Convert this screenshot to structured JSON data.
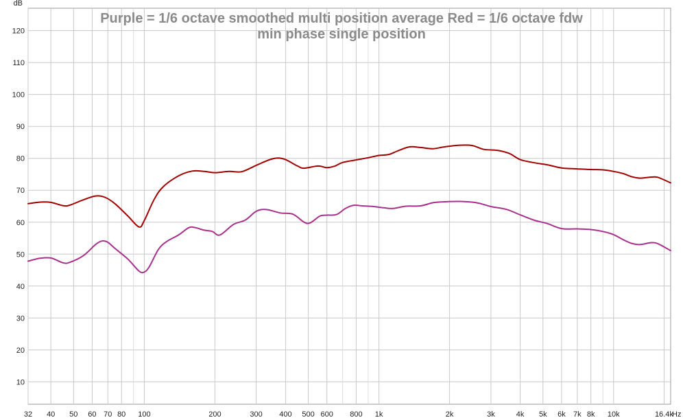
{
  "chart_data": {
    "type": "line",
    "title_line1": "Purple = 1/6 octave smoothed multi position average  Red =  1/6 octave fdw",
    "title_line2": "min phase single position",
    "ylabel": "dB",
    "xunit": "Hz",
    "xscale": "log",
    "xlim": [
      32,
      17500
    ],
    "ylim": [
      3,
      127
    ],
    "grid": true,
    "yticks": [
      10,
      20,
      30,
      40,
      50,
      60,
      70,
      80,
      90,
      100,
      110,
      120
    ],
    "xticks": [
      {
        "v": 32,
        "label": "32"
      },
      {
        "v": 40,
        "label": "40"
      },
      {
        "v": 50,
        "label": "50"
      },
      {
        "v": 60,
        "label": "60"
      },
      {
        "v": 70,
        "label": "70"
      },
      {
        "v": 80,
        "label": "80"
      },
      {
        "v": 100,
        "label": "100"
      },
      {
        "v": 200,
        "label": "200"
      },
      {
        "v": 300,
        "label": "300"
      },
      {
        "v": 400,
        "label": "400"
      },
      {
        "v": 500,
        "label": "500"
      },
      {
        "v": 600,
        "label": "600"
      },
      {
        "v": 800,
        "label": "800"
      },
      {
        "v": 1000,
        "label": "1k"
      },
      {
        "v": 2000,
        "label": "2k"
      },
      {
        "v": 3000,
        "label": "3k"
      },
      {
        "v": 4000,
        "label": "4k"
      },
      {
        "v": 5000,
        "label": "5k"
      },
      {
        "v": 6000,
        "label": "6k"
      },
      {
        "v": 7000,
        "label": "7k"
      },
      {
        "v": 8000,
        "label": "8k"
      },
      {
        "v": 10000,
        "label": "10k"
      },
      {
        "v": 16400,
        "label": "16.4k"
      }
    ],
    "minor_x": [
      90,
      700,
      900,
      9000
    ],
    "series": [
      {
        "color": "#a00000",
        "points": [
          [
            32,
            65.8
          ],
          [
            36,
            66.3
          ],
          [
            40,
            66.2
          ],
          [
            45,
            65.2
          ],
          [
            48,
            65.3
          ],
          [
            55,
            67.0
          ],
          [
            62,
            68.2
          ],
          [
            68,
            67.8
          ],
          [
            75,
            65.8
          ],
          [
            85,
            62.0
          ],
          [
            95,
            58.5
          ],
          [
            100,
            60.5
          ],
          [
            110,
            67.0
          ],
          [
            120,
            71.0
          ],
          [
            140,
            74.5
          ],
          [
            160,
            76.0
          ],
          [
            180,
            75.9
          ],
          [
            200,
            75.5
          ],
          [
            230,
            75.9
          ],
          [
            260,
            75.8
          ],
          [
            300,
            77.8
          ],
          [
            340,
            79.5
          ],
          [
            370,
            80.1
          ],
          [
            400,
            79.6
          ],
          [
            450,
            77.6
          ],
          [
            480,
            76.9
          ],
          [
            550,
            77.6
          ],
          [
            600,
            77.1
          ],
          [
            650,
            77.6
          ],
          [
            700,
            78.7
          ],
          [
            800,
            79.5
          ],
          [
            900,
            80.2
          ],
          [
            1000,
            80.9
          ],
          [
            1100,
            81.2
          ],
          [
            1200,
            82.3
          ],
          [
            1350,
            83.6
          ],
          [
            1500,
            83.4
          ],
          [
            1700,
            83.0
          ],
          [
            1900,
            83.6
          ],
          [
            2200,
            84.1
          ],
          [
            2500,
            84.0
          ],
          [
            2800,
            82.8
          ],
          [
            3200,
            82.5
          ],
          [
            3600,
            81.5
          ],
          [
            4000,
            79.6
          ],
          [
            4600,
            78.6
          ],
          [
            5200,
            78.0
          ],
          [
            6000,
            77.0
          ],
          [
            7000,
            76.7
          ],
          [
            8000,
            76.5
          ],
          [
            9000,
            76.4
          ],
          [
            10000,
            75.9
          ],
          [
            11000,
            75.2
          ],
          [
            12000,
            74.2
          ],
          [
            13000,
            73.8
          ],
          [
            15000,
            74.2
          ],
          [
            16000,
            73.6
          ],
          [
            17500,
            72.3
          ]
        ]
      },
      {
        "color": "#a8308c",
        "points": [
          [
            32,
            47.8
          ],
          [
            36,
            48.7
          ],
          [
            40,
            48.8
          ],
          [
            45,
            47.3
          ],
          [
            48,
            47.4
          ],
          [
            55,
            49.5
          ],
          [
            62,
            53.0
          ],
          [
            66,
            54.1
          ],
          [
            70,
            53.7
          ],
          [
            75,
            51.8
          ],
          [
            85,
            48.5
          ],
          [
            95,
            44.7
          ],
          [
            100,
            44.4
          ],
          [
            105,
            46.0
          ],
          [
            115,
            51.5
          ],
          [
            125,
            54.0
          ],
          [
            140,
            56.0
          ],
          [
            155,
            58.3
          ],
          [
            165,
            58.3
          ],
          [
            180,
            57.5
          ],
          [
            195,
            57.1
          ],
          [
            210,
            56.0
          ],
          [
            240,
            59.3
          ],
          [
            270,
            60.7
          ],
          [
            300,
            63.4
          ],
          [
            330,
            64.0
          ],
          [
            380,
            62.9
          ],
          [
            430,
            62.5
          ],
          [
            480,
            60.0
          ],
          [
            510,
            59.8
          ],
          [
            560,
            61.9
          ],
          [
            600,
            62.2
          ],
          [
            660,
            62.4
          ],
          [
            720,
            64.3
          ],
          [
            780,
            65.3
          ],
          [
            850,
            65.1
          ],
          [
            950,
            64.9
          ],
          [
            1050,
            64.5
          ],
          [
            1150,
            64.3
          ],
          [
            1300,
            65.0
          ],
          [
            1500,
            65.1
          ],
          [
            1700,
            66.1
          ],
          [
            1900,
            66.4
          ],
          [
            2200,
            66.5
          ],
          [
            2600,
            66.1
          ],
          [
            3000,
            64.9
          ],
          [
            3500,
            64.0
          ],
          [
            4000,
            62.3
          ],
          [
            4600,
            60.6
          ],
          [
            5200,
            59.6
          ],
          [
            6000,
            58.0
          ],
          [
            7000,
            57.9
          ],
          [
            8000,
            57.7
          ],
          [
            9000,
            57.1
          ],
          [
            10000,
            56.1
          ],
          [
            11000,
            54.5
          ],
          [
            12000,
            53.3
          ],
          [
            13000,
            53.0
          ],
          [
            14500,
            53.6
          ],
          [
            15500,
            53.2
          ],
          [
            17500,
            51.1
          ]
        ]
      }
    ]
  }
}
